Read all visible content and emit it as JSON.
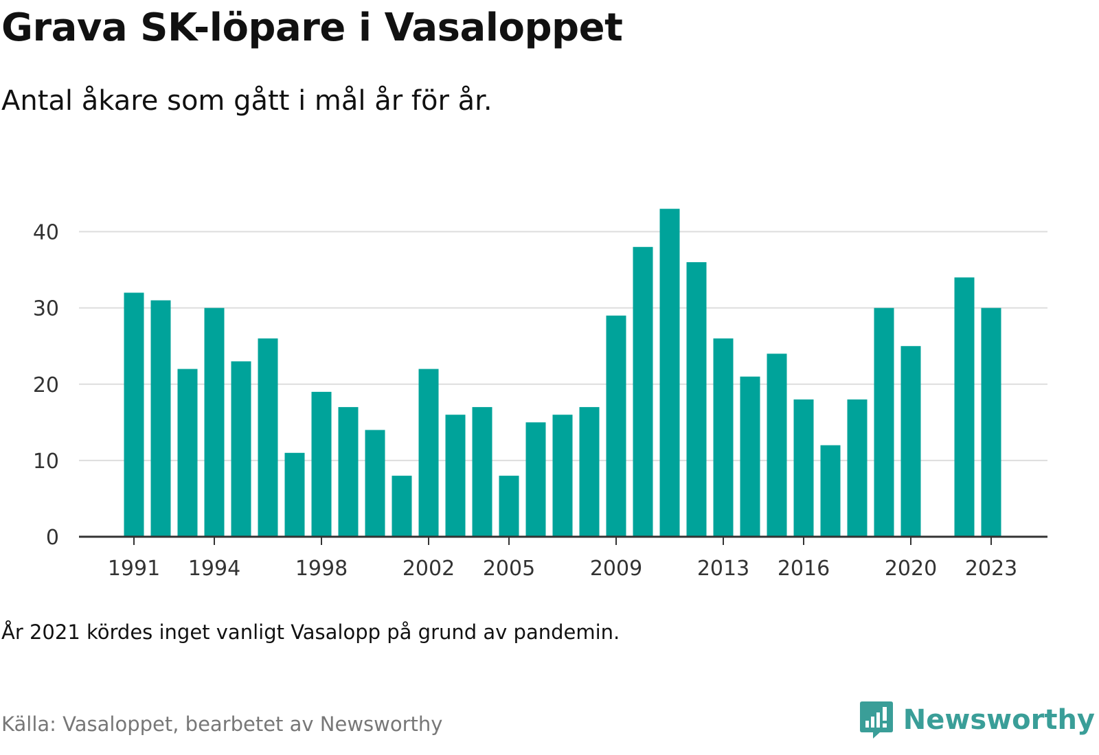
{
  "title": "Grava SK-löpare i Vasaloppet",
  "subtitle": "Antal åkare som gått i mål år för år.",
  "note": "År 2021 kördes inget vanligt Vasalopp på grund av pandemin.",
  "source": "Källa: Vasaloppet, bearbetet av Newsworthy",
  "brand": {
    "name": "Newsworthy",
    "icon": "newsworthy-logo-icon",
    "color": "#3a9e98"
  },
  "chart_data": {
    "type": "bar",
    "title": "Grava SK-löpare i Vasaloppet",
    "subtitle": "Antal åkare som gått i mål år för år.",
    "xlabel": "",
    "ylabel": "",
    "ylim": [
      0,
      45
    ],
    "yticks": [
      0,
      10,
      20,
      30,
      40
    ],
    "xtick_labels": [
      "1991",
      "1994",
      "1998",
      "2002",
      "2005",
      "2009",
      "2013",
      "2016",
      "2020",
      "2023"
    ],
    "grid": true,
    "bar_color": "#00a39a",
    "categories": [
      1991,
      1992,
      1993,
      1994,
      1995,
      1996,
      1997,
      1998,
      1999,
      2000,
      2001,
      2002,
      2003,
      2004,
      2005,
      2006,
      2007,
      2008,
      2009,
      2010,
      2011,
      2012,
      2013,
      2014,
      2015,
      2016,
      2017,
      2018,
      2019,
      2020,
      2021,
      2022,
      2023
    ],
    "values": [
      32,
      31,
      22,
      30,
      23,
      26,
      11,
      19,
      17,
      14,
      8,
      22,
      16,
      17,
      8,
      15,
      16,
      17,
      29,
      38,
      43,
      36,
      26,
      21,
      24,
      18,
      12,
      18,
      30,
      25,
      null,
      34,
      30
    ]
  }
}
